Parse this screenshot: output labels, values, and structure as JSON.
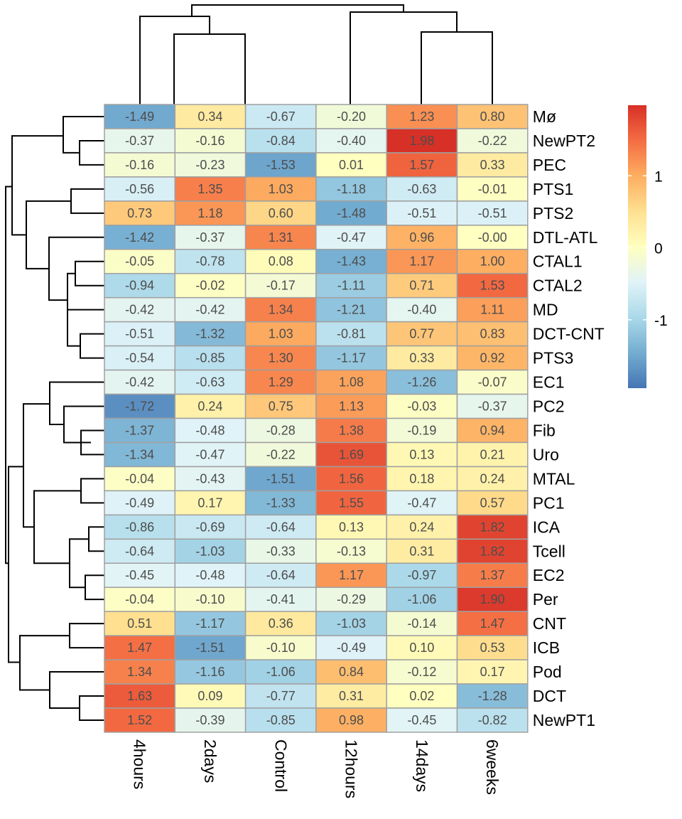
{
  "chart_data": {
    "type": "heatmap",
    "columns": [
      "4hours",
      "2days",
      "Control",
      "12hours",
      "14days",
      "6weeks"
    ],
    "rows": [
      "Mø",
      "NewPT2",
      "PEC",
      "PTS1",
      "PTS2",
      "DTL-ATL",
      "CTAL1",
      "CTAL2",
      "MD",
      "DCT-CNT",
      "PTS3",
      "EC1",
      "PC2",
      "Fib",
      "Uro",
      "MTAL",
      "PC1",
      "ICA",
      "Tcell",
      "EC2",
      "Per",
      "CNT",
      "ICB",
      "Pod",
      "DCT",
      "NewPT1"
    ],
    "values": [
      [
        -1.49,
        0.34,
        -0.67,
        -0.2,
        1.23,
        0.8
      ],
      [
        -0.37,
        -0.16,
        -0.84,
        -0.4,
        1.98,
        -0.22
      ],
      [
        -0.16,
        -0.23,
        -1.53,
        0.01,
        1.57,
        0.33
      ],
      [
        -0.56,
        1.35,
        1.03,
        -1.18,
        -0.63,
        -0.01
      ],
      [
        0.73,
        1.18,
        0.6,
        -1.48,
        -0.51,
        -0.51
      ],
      [
        -1.42,
        -0.37,
        1.31,
        -0.47,
        0.96,
        -0.0
      ],
      [
        -0.05,
        -0.78,
        0.08,
        -1.43,
        1.17,
        1.0
      ],
      [
        -0.94,
        -0.02,
        -0.17,
        -1.11,
        0.71,
        1.53
      ],
      [
        -0.42,
        -0.42,
        1.34,
        -1.21,
        -0.4,
        1.11
      ],
      [
        -0.51,
        -1.32,
        1.03,
        -0.81,
        0.77,
        0.83
      ],
      [
        -0.54,
        -0.85,
        1.3,
        -1.17,
        0.33,
        0.92
      ],
      [
        -0.42,
        -0.63,
        1.29,
        1.08,
        -1.26,
        -0.07
      ],
      [
        -1.72,
        0.24,
        0.75,
        1.13,
        -0.03,
        -0.37
      ],
      [
        -1.37,
        -0.48,
        -0.28,
        1.38,
        -0.19,
        0.94
      ],
      [
        -1.34,
        -0.47,
        -0.22,
        1.69,
        0.13,
        0.21
      ],
      [
        -0.04,
        -0.43,
        -1.51,
        1.56,
        0.18,
        0.24
      ],
      [
        -0.49,
        0.17,
        -1.33,
        1.55,
        -0.47,
        0.57
      ],
      [
        -0.86,
        -0.69,
        -0.64,
        0.13,
        0.24,
        1.82
      ],
      [
        -0.64,
        -1.03,
        -0.33,
        -0.13,
        0.31,
        1.82
      ],
      [
        -0.45,
        -0.48,
        -0.64,
        1.17,
        -0.97,
        1.37
      ],
      [
        -0.04,
        -0.1,
        -0.41,
        -0.29,
        -1.06,
        1.9
      ],
      [
        0.51,
        -1.17,
        0.36,
        -1.03,
        -0.14,
        1.47
      ],
      [
        1.47,
        -1.51,
        -0.1,
        -0.49,
        0.1,
        0.53
      ],
      [
        1.34,
        -1.16,
        -1.06,
        0.84,
        -0.12,
        0.17
      ],
      [
        1.63,
        0.09,
        -0.77,
        0.31,
        0.02,
        -1.28
      ],
      [
        1.52,
        -0.39,
        -0.85,
        0.98,
        -0.45,
        -0.82
      ]
    ],
    "value_labels": [
      [
        "-1.49",
        "0.34",
        "-0.67",
        "-0.20",
        "1.23",
        "0.80"
      ],
      [
        "-0.37",
        "-0.16",
        "-0.84",
        "-0.40",
        "1.98",
        "-0.22"
      ],
      [
        "-0.16",
        "-0.23",
        "-1.53",
        "0.01",
        "1.57",
        "0.33"
      ],
      [
        "-0.56",
        "1.35",
        "1.03",
        "-1.18",
        "-0.63",
        "-0.01"
      ],
      [
        "0.73",
        "1.18",
        "0.60",
        "-1.48",
        "-0.51",
        "-0.51"
      ],
      [
        "-1.42",
        "-0.37",
        "1.31",
        "-0.47",
        "0.96",
        "-0.00"
      ],
      [
        "-0.05",
        "-0.78",
        "0.08",
        "-1.43",
        "1.17",
        "1.00"
      ],
      [
        "-0.94",
        "-0.02",
        "-0.17",
        "-1.11",
        "0.71",
        "1.53"
      ],
      [
        "-0.42",
        "-0.42",
        "1.34",
        "-1.21",
        "-0.40",
        "1.11"
      ],
      [
        "-0.51",
        "-1.32",
        "1.03",
        "-0.81",
        "0.77",
        "0.83"
      ],
      [
        "-0.54",
        "-0.85",
        "1.30",
        "-1.17",
        "0.33",
        "0.92"
      ],
      [
        "-0.42",
        "-0.63",
        "1.29",
        "1.08",
        "-1.26",
        "-0.07"
      ],
      [
        "-1.72",
        "0.24",
        "0.75",
        "1.13",
        "-0.03",
        "-0.37"
      ],
      [
        "-1.37",
        "-0.48",
        "-0.28",
        "1.38",
        "-0.19",
        "0.94"
      ],
      [
        "-1.34",
        "-0.47",
        "-0.22",
        "1.69",
        "0.13",
        "0.21"
      ],
      [
        "-0.04",
        "-0.43",
        "-1.51",
        "1.56",
        "0.18",
        "0.24"
      ],
      [
        "-0.49",
        "0.17",
        "-1.33",
        "1.55",
        "-0.47",
        "0.57"
      ],
      [
        "-0.86",
        "-0.69",
        "-0.64",
        "0.13",
        "0.24",
        "1.82"
      ],
      [
        "-0.64",
        "-1.03",
        "-0.33",
        "-0.13",
        "0.31",
        "1.82"
      ],
      [
        "-0.45",
        "-0.48",
        "-0.64",
        "1.17",
        "-0.97",
        "1.37"
      ],
      [
        "-0.04",
        "-0.10",
        "-0.41",
        "-0.29",
        "-1.06",
        "1.90"
      ],
      [
        "0.51",
        "-1.17",
        "0.36",
        "-1.03",
        "-0.14",
        "1.47"
      ],
      [
        "1.47",
        "-1.51",
        "-0.10",
        "-0.49",
        "0.10",
        "0.53"
      ],
      [
        "1.34",
        "-1.16",
        "-1.06",
        "0.84",
        "-0.12",
        "0.17"
      ],
      [
        "1.63",
        "0.09",
        "-0.77",
        "0.31",
        "0.02",
        "-1.28"
      ],
      [
        "1.52",
        "-0.39",
        "-0.85",
        "0.98",
        "-0.45",
        "-0.82"
      ]
    ],
    "color_scale": {
      "range": [
        -1.95,
        1.98
      ],
      "colors": [
        "#4575b4",
        "#74add1",
        "#abd9e9",
        "#e0f3f8",
        "#ffffbf",
        "#fee090",
        "#fdae61",
        "#f46d43",
        "#d73027"
      ]
    },
    "legend": {
      "ticks": [
        1,
        0,
        -1
      ],
      "tick_labels": [
        "1",
        "0",
        "-1"
      ],
      "placement": "right"
    },
    "column_dendrogram": true,
    "row_dendrogram": true,
    "cell_border_color": "#a0a0a0",
    "cell_text_color": "#4d4d4d"
  }
}
